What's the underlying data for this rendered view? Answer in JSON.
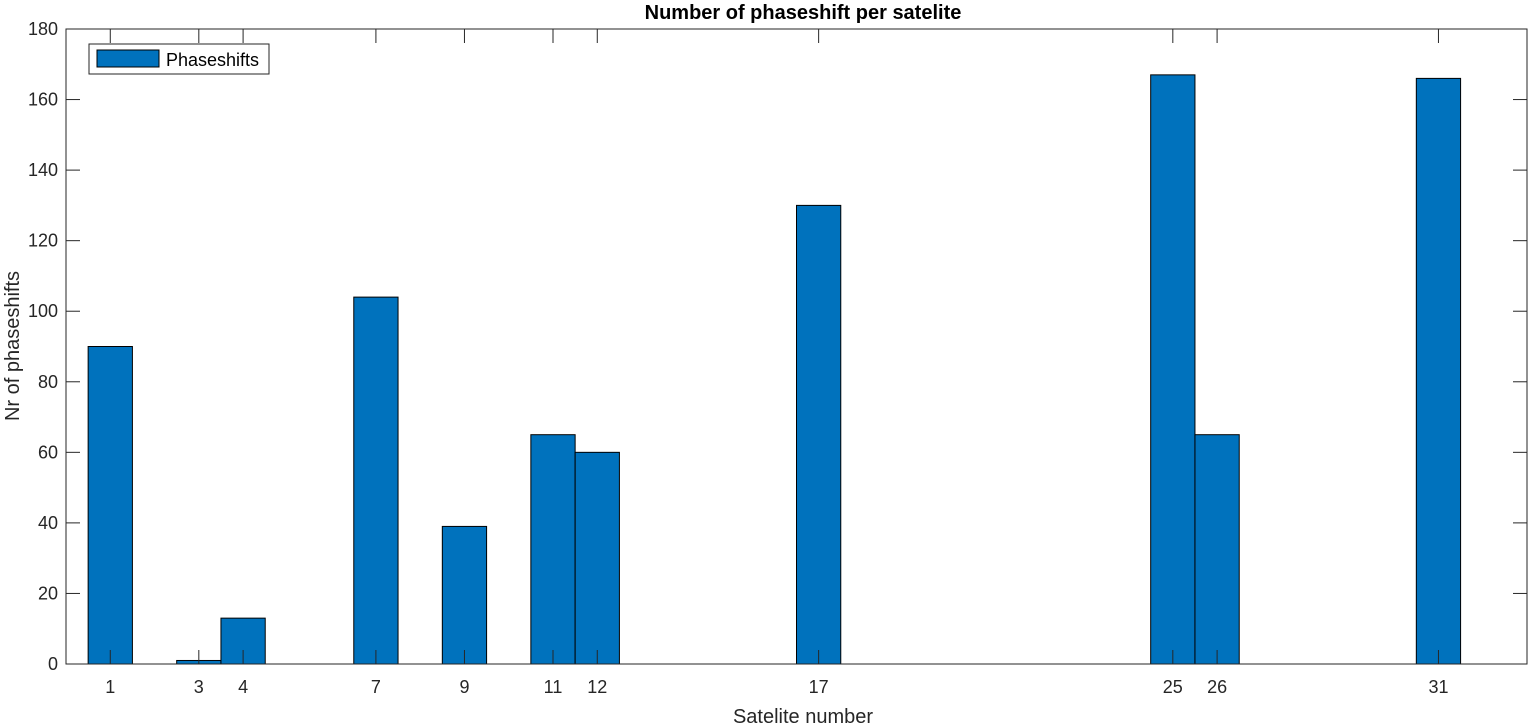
{
  "chart_data": {
    "type": "bar",
    "title": "Number of phaseshift per satelite",
    "xlabel": "Satelite number",
    "ylabel": "Nr of phaseshifts",
    "x": [
      1,
      3,
      4,
      7,
      9,
      11,
      12,
      17,
      25,
      26,
      31
    ],
    "series": [
      {
        "name": "Phaseshifts",
        "values": [
          90,
          1,
          13,
          104,
          39,
          65,
          60,
          130,
          167,
          65,
          166
        ],
        "color": "#0072BD"
      }
    ],
    "xlim": [
      0,
      33
    ],
    "ylim": [
      0,
      180
    ],
    "yticks": [
      0,
      20,
      40,
      60,
      80,
      100,
      120,
      140,
      160,
      180
    ],
    "xticks": [
      1,
      3,
      4,
      7,
      9,
      11,
      12,
      17,
      25,
      26,
      31
    ],
    "legend_position": "top-left",
    "grid": false
  }
}
